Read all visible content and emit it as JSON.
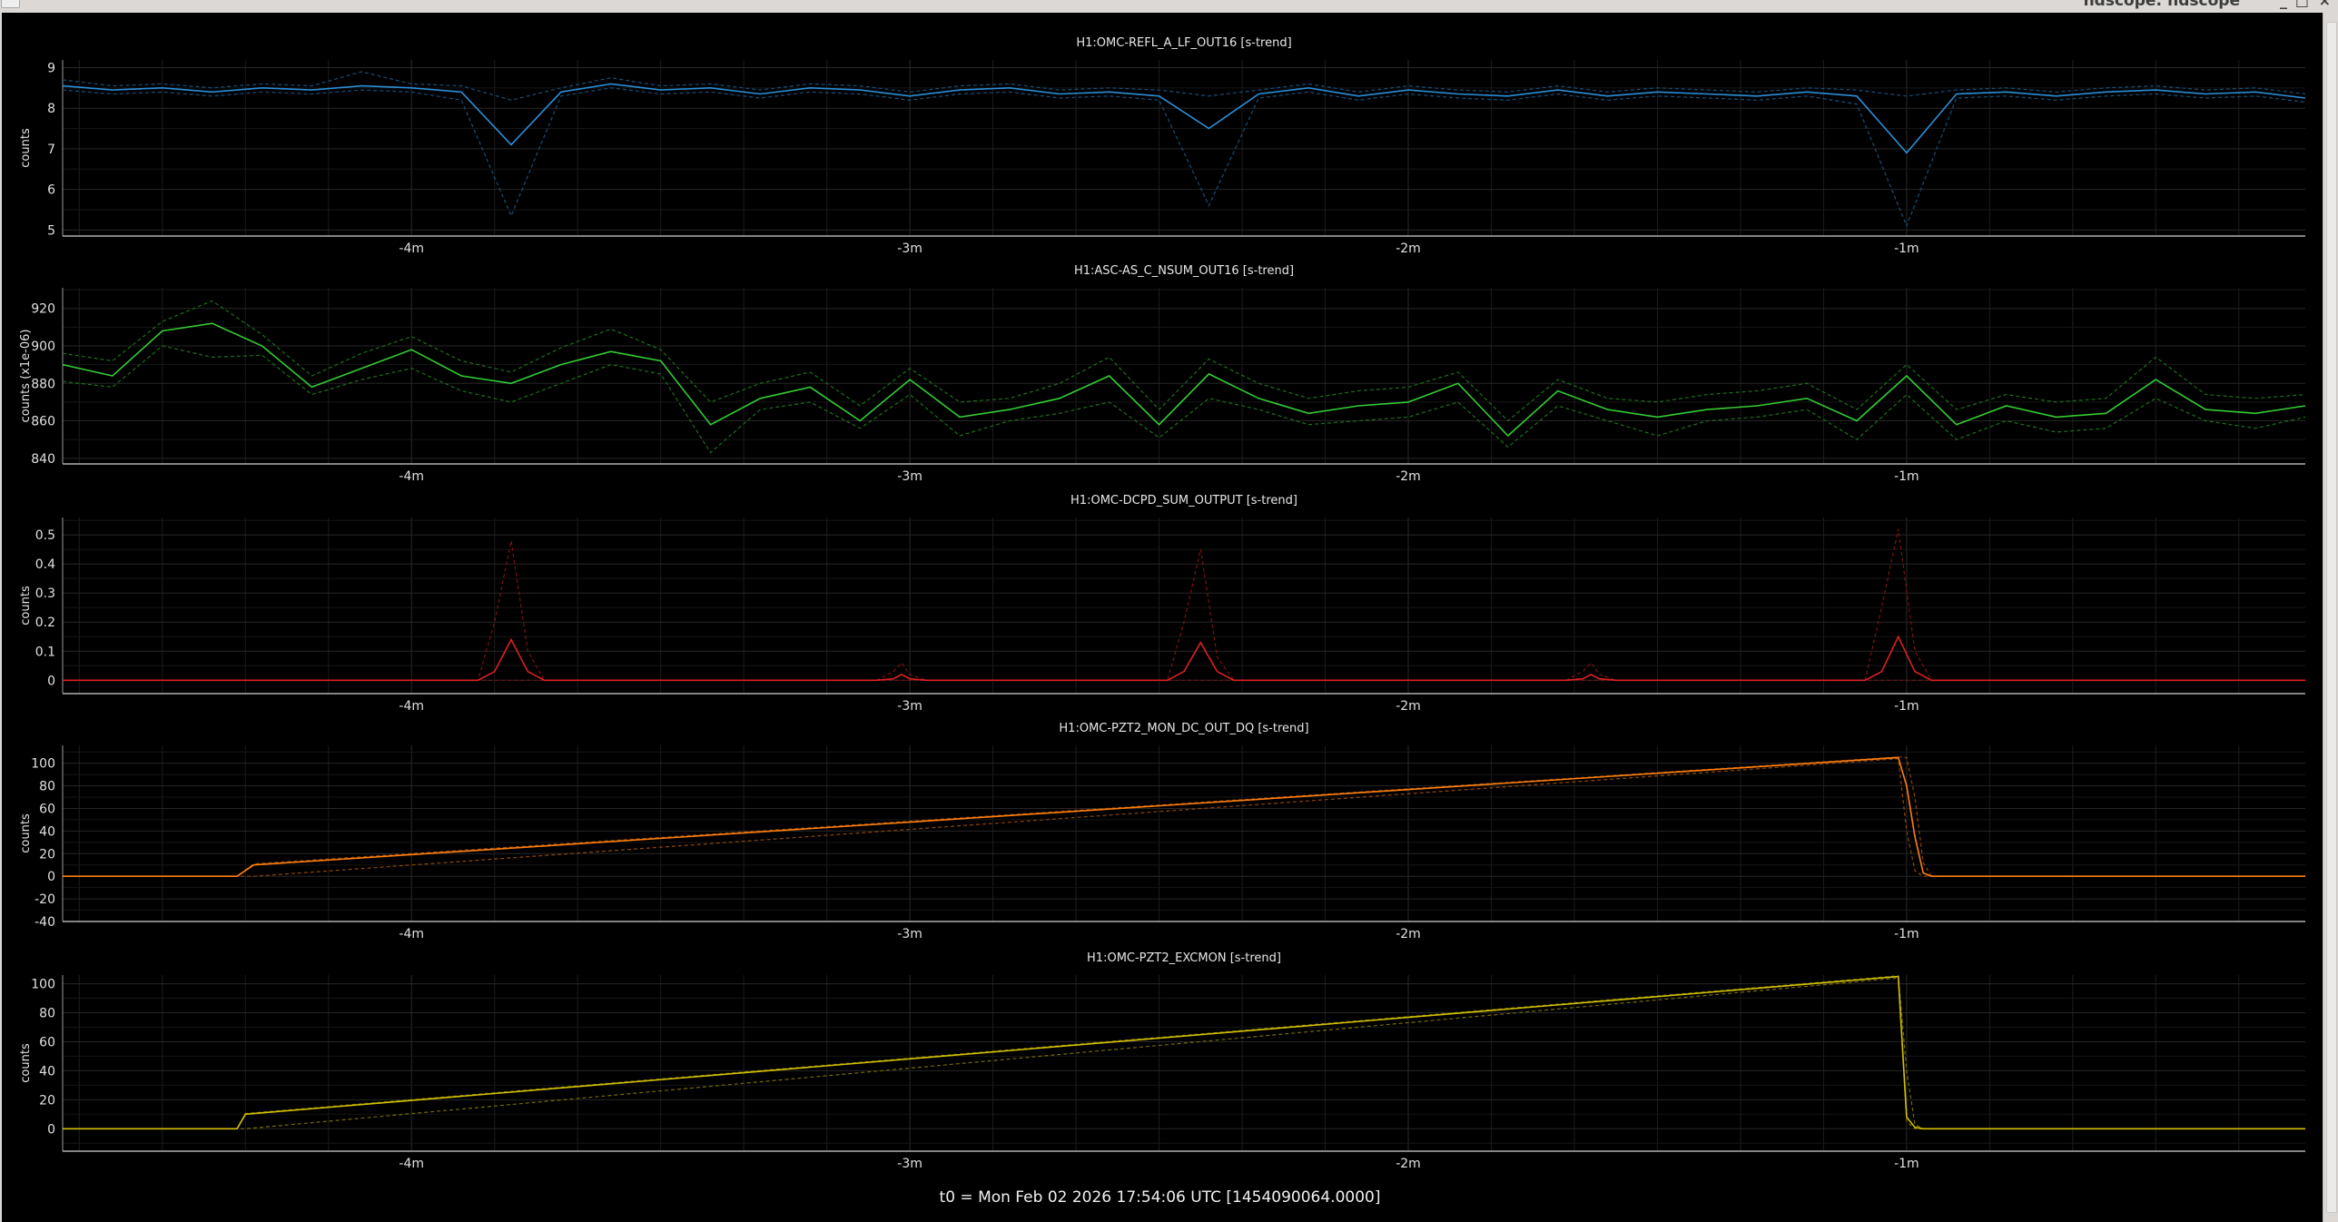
{
  "window": {
    "title": "ndscope: ndscope",
    "buttons": [
      "^",
      "_",
      "□",
      "×"
    ]
  },
  "footer": {
    "t0": "t0 = Mon Feb 02 2026 17:54:06 UTC [1454090064.0000]"
  },
  "x_axis": {
    "unit": "s",
    "range": [
      -282,
      -12
    ],
    "ticks": [
      -240,
      -180,
      -120,
      -60
    ],
    "tick_labels": [
      "-4m",
      "-3m",
      "-2m",
      "-1m"
    ]
  },
  "chart_data": [
    {
      "type": "line",
      "title": "H1:OMC-REFL_A_LF_OUT16 [s-trend]",
      "ylabel": "counts",
      "ylim": [
        4.85,
        9.19
      ],
      "yticks": [
        5,
        6,
        7,
        8,
        9
      ],
      "grid": true,
      "color": "#2a8fd8",
      "t_start_s": -282,
      "t_step_s": 6,
      "mean": [
        8.55,
        8.45,
        8.5,
        8.4,
        8.5,
        8.45,
        8.55,
        8.5,
        8.4,
        7.1,
        8.4,
        8.6,
        8.45,
        8.5,
        8.35,
        8.5,
        8.45,
        8.3,
        8.45,
        8.5,
        8.35,
        8.4,
        8.3,
        7.5,
        8.35,
        8.5,
        8.3,
        8.45,
        8.35,
        8.3,
        8.45,
        8.3,
        8.4,
        8.35,
        8.3,
        8.4,
        8.3,
        6.9,
        8.35,
        8.4,
        8.3,
        8.4,
        8.45,
        8.35,
        8.4,
        8.25
      ],
      "min": [
        8.45,
        8.35,
        8.4,
        8.3,
        8.4,
        8.35,
        8.45,
        8.4,
        8.2,
        5.35,
        8.3,
        8.5,
        8.35,
        8.4,
        8.25,
        8.4,
        8.35,
        8.2,
        8.35,
        8.4,
        8.25,
        8.3,
        8.2,
        5.6,
        8.25,
        8.4,
        8.2,
        8.35,
        8.25,
        8.2,
        8.35,
        8.2,
        8.3,
        8.25,
        8.2,
        8.3,
        8.1,
        5.1,
        8.25,
        8.3,
        8.2,
        8.3,
        8.35,
        8.25,
        8.3,
        8.15
      ],
      "max": [
        8.7,
        8.55,
        8.6,
        8.5,
        8.6,
        8.55,
        8.9,
        8.6,
        8.55,
        8.2,
        8.5,
        8.75,
        8.55,
        8.6,
        8.45,
        8.6,
        8.55,
        8.4,
        8.55,
        8.6,
        8.45,
        8.5,
        8.45,
        8.3,
        8.45,
        8.6,
        8.4,
        8.55,
        8.45,
        8.4,
        8.55,
        8.4,
        8.5,
        8.45,
        8.4,
        8.5,
        8.45,
        8.3,
        8.45,
        8.5,
        8.4,
        8.5,
        8.55,
        8.45,
        8.5,
        8.35
      ]
    },
    {
      "type": "line",
      "title": "H1:ASC-AS_C_NSUM_OUT16 [s-trend]",
      "ylabel": "counts (x1e-06)",
      "ylim": [
        837,
        931
      ],
      "yticks": [
        840,
        860,
        880,
        900,
        920
      ],
      "grid": true,
      "color": "#33cc33",
      "t_start_s": -282,
      "t_step_s": 6,
      "mean": [
        890,
        884,
        908,
        912,
        900,
        878,
        888,
        898,
        884,
        880,
        890,
        897,
        892,
        858,
        872,
        878,
        860,
        882,
        862,
        866,
        872,
        884,
        858,
        885,
        872,
        864,
        868,
        870,
        880,
        852,
        876,
        866,
        862,
        866,
        868,
        872,
        860,
        884,
        858,
        868,
        862,
        864,
        882,
        866,
        864,
        868
      ],
      "min": [
        881,
        878,
        900,
        894,
        895,
        874,
        882,
        888,
        876,
        870,
        880,
        890,
        885,
        843,
        866,
        870,
        856,
        874,
        852,
        860,
        864,
        870,
        851,
        872,
        866,
        858,
        860,
        862,
        870,
        846,
        868,
        860,
        852,
        860,
        862,
        866,
        850,
        874,
        850,
        860,
        854,
        856,
        872,
        860,
        856,
        862
      ],
      "max": [
        896,
        892,
        913,
        924,
        906,
        884,
        896,
        905,
        892,
        886,
        899,
        909,
        898,
        870,
        880,
        886,
        868,
        888,
        870,
        872,
        880,
        894,
        866,
        893,
        880,
        872,
        876,
        878,
        886,
        860,
        882,
        872,
        870,
        874,
        876,
        880,
        866,
        890,
        866,
        874,
        870,
        872,
        894,
        874,
        872,
        874
      ]
    },
    {
      "type": "line",
      "title": "H1:OMC-DCPD_SUM_OUTPUT [s-trend]",
      "ylabel": "counts",
      "ylim": [
        -0.046,
        0.56
      ],
      "yticks": [
        0,
        0.1,
        0.2,
        0.3,
        0.4,
        0.5
      ],
      "grid": true,
      "color": "#e02020",
      "t": [
        -282,
        -232,
        -230,
        -228,
        -226,
        -224,
        -184,
        -182,
        -181,
        -180,
        -178,
        -149,
        -147,
        -145,
        -143,
        -141,
        -101,
        -99,
        -98,
        -97,
        -95,
        -65,
        -63,
        -61,
        -59,
        -57,
        -12
      ],
      "mean": [
        0,
        0,
        0.03,
        0.14,
        0.03,
        0,
        0,
        0.005,
        0.02,
        0.005,
        0,
        0,
        0.03,
        0.13,
        0.03,
        0,
        0,
        0.005,
        0.02,
        0.005,
        0,
        0,
        0.03,
        0.15,
        0.03,
        0,
        0
      ],
      "min": [
        0,
        0,
        0,
        0,
        0,
        0,
        0,
        0,
        0,
        0,
        0,
        0,
        0,
        0,
        0,
        0,
        0,
        0,
        0,
        0,
        0,
        0,
        0,
        0,
        0,
        0,
        0
      ],
      "max": [
        0,
        0,
        0.2,
        0.48,
        0.1,
        0,
        0,
        0.03,
        0.06,
        0.02,
        0,
        0,
        0.2,
        0.45,
        0.08,
        0,
        0,
        0.03,
        0.06,
        0.02,
        0,
        0,
        0.25,
        0.52,
        0.1,
        0,
        0
      ]
    },
    {
      "type": "line",
      "title": "H1:OMC-PZT2_MON_DC_OUT_DQ [s-trend]",
      "ylabel": "counts",
      "ylim": [
        -40,
        115.8
      ],
      "yticks": [
        -40,
        -20,
        0,
        20,
        40,
        60,
        80,
        100
      ],
      "grid": true,
      "color": "#ff7f0e",
      "t": [
        -282,
        -261,
        -259,
        -61,
        -60,
        -59,
        -58,
        -57,
        -12
      ],
      "mean": [
        0,
        0,
        10,
        105,
        80,
        35,
        3,
        0,
        0
      ],
      "min": [
        0,
        0,
        0,
        104,
        40,
        5,
        0,
        0,
        0
      ],
      "max": [
        0,
        0,
        11,
        105.5,
        105,
        70,
        12,
        0,
        0
      ]
    },
    {
      "type": "line",
      "title": "H1:OMC-PZT2_EXCMON [s-trend]",
      "ylabel": "counts",
      "ylim": [
        -15.5,
        106
      ],
      "yticks": [
        0,
        20,
        40,
        60,
        80,
        100
      ],
      "grid": true,
      "color": "#d4c000",
      "t": [
        -282,
        -261,
        -260,
        -61,
        -60,
        -59,
        -58,
        -12
      ],
      "mean": [
        0,
        0,
        10,
        105,
        8,
        1,
        0,
        0
      ],
      "min": [
        0,
        0,
        0,
        104,
        5,
        0,
        0,
        0
      ],
      "max": [
        0,
        0,
        10.5,
        105.5,
        40,
        3,
        0,
        0
      ]
    }
  ]
}
